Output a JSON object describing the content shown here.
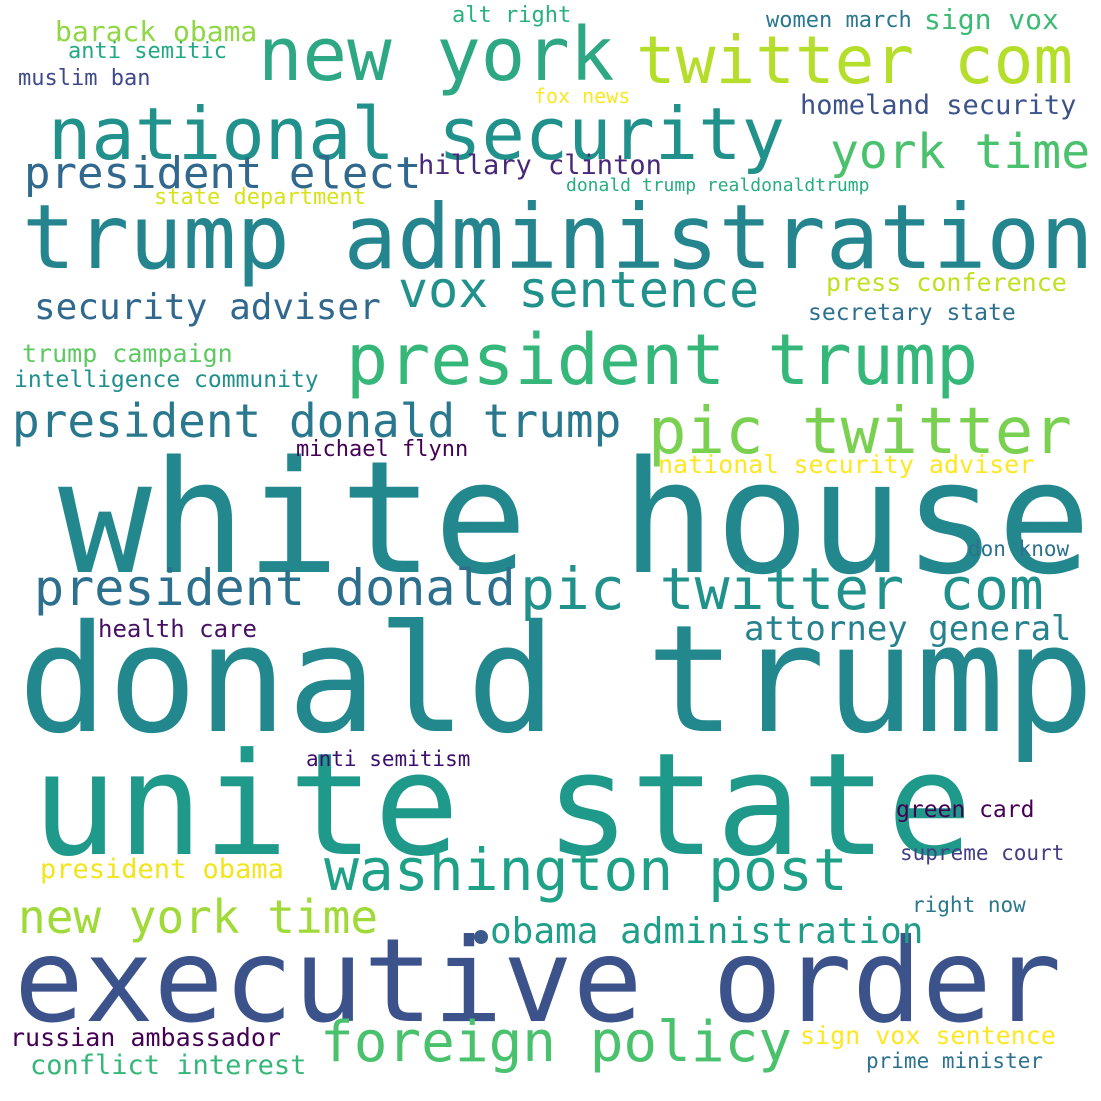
{
  "words": [
    {
      "text": "white house",
      "color": "#23888e"
    },
    {
      "text": "donald trump",
      "color": "#23888e"
    },
    {
      "text": "unite state",
      "color": "#1f9a8a"
    },
    {
      "text": "executive order",
      "color": "#3b528b"
    },
    {
      "text": "trump administration",
      "color": "#25858e"
    },
    {
      "text": "national security",
      "color": "#21918c"
    },
    {
      "text": "new york",
      "color": "#2ea884"
    },
    {
      "text": "twitter com",
      "color": "#b5de2b"
    },
    {
      "text": "president trump",
      "color": "#35b779"
    },
    {
      "text": "pic twitter",
      "color": "#7ad151"
    },
    {
      "text": "pic twitter com",
      "color": "#21918c"
    },
    {
      "text": "president donald",
      "color": "#2d708e"
    },
    {
      "text": "washington post",
      "color": "#1fa187"
    },
    {
      "text": "foreign policy",
      "color": "#4ac16d"
    },
    {
      "text": "vox sentence",
      "color": "#21918c"
    },
    {
      "text": "president donald trump",
      "color": "#2a788e"
    },
    {
      "text": "new york time",
      "color": "#a0da39"
    },
    {
      "text": "president elect",
      "color": "#31688e"
    },
    {
      "text": "york time",
      "color": "#4ac16d"
    },
    {
      "text": "obama administration",
      "color": "#1f9e89"
    },
    {
      "text": "security adviser",
      "color": "#31688e"
    },
    {
      "text": "attorney general",
      "color": "#26828e"
    },
    {
      "text": "homeland security",
      "color": "#3b528b"
    },
    {
      "text": "hillary clinton",
      "color": "#482878"
    },
    {
      "text": "barack obama",
      "color": "#8fd744"
    },
    {
      "text": "sign vox",
      "color": "#3cbb75"
    },
    {
      "text": "women march",
      "color": "#2a788e"
    },
    {
      "text": "alt right",
      "color": "#2ab07f"
    },
    {
      "text": "anti semitic",
      "color": "#22a884"
    },
    {
      "text": "muslim ban",
      "color": "#3e4a89"
    },
    {
      "text": "fox news",
      "color": "#fde725"
    },
    {
      "text": "donald trump realdonaldtrump",
      "color": "#27ad81"
    },
    {
      "text": "state department",
      "color": "#d8e219"
    },
    {
      "text": "press conference",
      "color": "#c2df23"
    },
    {
      "text": "secretary state",
      "color": "#2d708e"
    },
    {
      "text": "trump campaign",
      "color": "#5ec962"
    },
    {
      "text": "intelligence community",
      "color": "#218f8d"
    },
    {
      "text": "michael flynn",
      "color": "#440154"
    },
    {
      "text": "national security adviser",
      "color": "#fde725"
    },
    {
      "text": "don know",
      "color": "#2c728e"
    },
    {
      "text": "health care",
      "color": "#471063"
    },
    {
      "text": "anti semitism",
      "color": "#3b0f70"
    },
    {
      "text": "green card",
      "color": "#440154"
    },
    {
      "text": "supreme court",
      "color": "#433e85"
    },
    {
      "text": "president obama",
      "color": "#f1e51d"
    },
    {
      "text": "right now",
      "color": "#2a788e"
    },
    {
      "text": "russian ambassador",
      "color": "#440154"
    },
    {
      "text": "sign vox sentence",
      "color": "#fde725"
    },
    {
      "text": "conflict interest",
      "color": "#35b779"
    },
    {
      "text": "prime minister",
      "color": "#2c728e"
    }
  ]
}
